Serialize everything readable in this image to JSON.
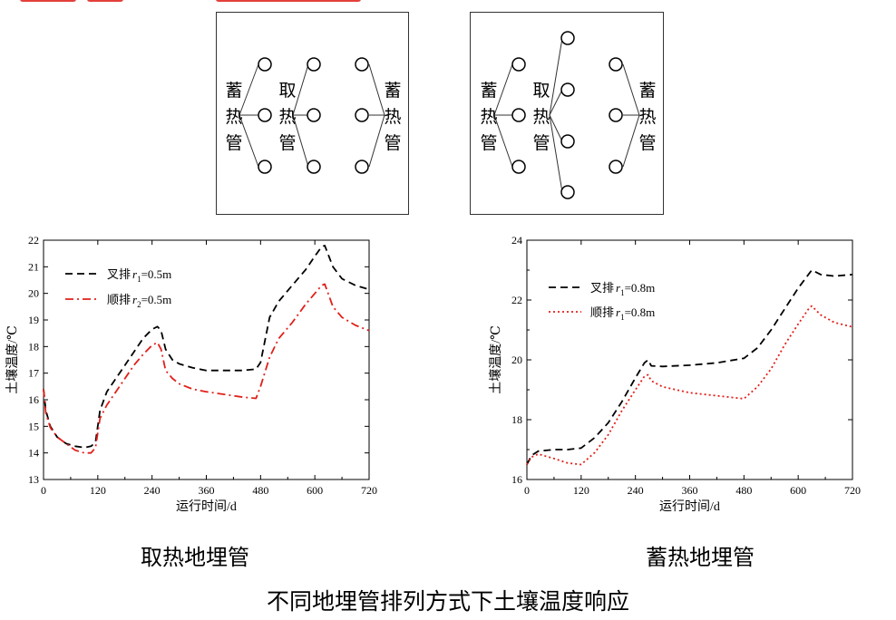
{
  "diagrams": {
    "left": {
      "labels": [
        "蓄热管",
        "取热管",
        "蓄热管"
      ]
    },
    "right": {
      "labels": [
        "蓄热管",
        "取热管",
        "蓄热管"
      ]
    }
  },
  "captions": {
    "left": "取热地埋管",
    "right": "蓄热地埋管",
    "main": "不同地埋管排列方式下土壤温度响应"
  },
  "colors": {
    "black": "#000000",
    "red": "#e0201a"
  },
  "chart_data": [
    {
      "type": "line",
      "title": "取热地埋管",
      "xlabel": "运行时间/d",
      "ylabel": "土壤温度/℃",
      "xlim": [
        0,
        720
      ],
      "ylim": [
        13,
        22
      ],
      "xticks": [
        0,
        120,
        240,
        360,
        480,
        600,
        720
      ],
      "yticks": [
        13,
        14,
        15,
        16,
        17,
        18,
        19,
        20,
        21,
        22
      ],
      "legend_position": "top-left",
      "series": [
        {
          "name": "叉排",
          "r_var": "r",
          "r_sub": "1",
          "r_val": "=0.5m",
          "color": "#000000",
          "dash": "dash",
          "x": [
            0,
            5,
            15,
            30,
            50,
            70,
            90,
            105,
            115,
            125,
            140,
            160,
            180,
            200,
            220,
            240,
            252,
            260,
            270,
            285,
            300,
            330,
            360,
            400,
            440,
            470,
            480,
            500,
            520,
            550,
            580,
            600,
            615,
            622,
            640,
            660,
            690,
            720
          ],
          "y": [
            16.4,
            15.6,
            15.0,
            14.6,
            14.35,
            14.25,
            14.2,
            14.25,
            14.4,
            15.6,
            16.3,
            16.8,
            17.3,
            17.8,
            18.3,
            18.65,
            18.75,
            18.6,
            17.9,
            17.5,
            17.35,
            17.2,
            17.1,
            17.1,
            17.1,
            17.15,
            17.4,
            19.1,
            19.7,
            20.3,
            20.9,
            21.4,
            21.75,
            21.8,
            21.0,
            20.55,
            20.3,
            20.15
          ]
        },
        {
          "name": "顺排",
          "r_var": "r",
          "r_sub": "2",
          "r_val": "=0.5m",
          "color": "#e0201a",
          "dash": "dashdot",
          "x": [
            0,
            5,
            15,
            30,
            50,
            70,
            90,
            105,
            115,
            125,
            140,
            160,
            180,
            200,
            220,
            240,
            252,
            260,
            270,
            285,
            300,
            330,
            360,
            400,
            440,
            470,
            480,
            500,
            520,
            550,
            580,
            600,
            615,
            622,
            640,
            660,
            690,
            720
          ],
          "y": [
            16.4,
            15.5,
            14.95,
            14.6,
            14.35,
            14.1,
            14.0,
            14.0,
            14.2,
            15.3,
            15.8,
            16.3,
            16.8,
            17.3,
            17.7,
            18.05,
            18.15,
            17.9,
            17.1,
            16.8,
            16.6,
            16.4,
            16.3,
            16.2,
            16.1,
            16.05,
            16.5,
            17.6,
            18.3,
            18.9,
            19.6,
            20.0,
            20.3,
            20.35,
            19.5,
            19.1,
            18.8,
            18.6
          ]
        }
      ]
    },
    {
      "type": "line",
      "title": "蓄热地埋管",
      "xlabel": "运行时间/d",
      "ylabel": "土壤温度/℃",
      "xlim": [
        0,
        720
      ],
      "ylim": [
        16,
        24
      ],
      "xticks": [
        0,
        120,
        240,
        360,
        480,
        600,
        720
      ],
      "yticks": [
        16,
        18,
        20,
        22,
        24
      ],
      "legend_position": "top-left",
      "series": [
        {
          "name": "叉排",
          "r_var": "r",
          "r_sub": "1",
          "r_val": "=0.8m",
          "color": "#000000",
          "dash": "dash",
          "x": [
            0,
            10,
            25,
            60,
            90,
            120,
            150,
            180,
            210,
            240,
            260,
            268,
            275,
            300,
            360,
            420,
            480,
            510,
            540,
            570,
            600,
            625,
            630,
            650,
            680,
            720
          ],
          "y": [
            16.5,
            16.8,
            16.95,
            17.0,
            17.0,
            17.05,
            17.4,
            17.9,
            18.6,
            19.4,
            19.9,
            20.0,
            19.8,
            19.78,
            19.82,
            19.9,
            20.05,
            20.4,
            21.0,
            21.7,
            22.4,
            22.9,
            23.0,
            22.85,
            22.8,
            22.85
          ]
        },
        {
          "name": "顺排",
          "r_var": "r",
          "r_sub": "1",
          "r_val": "=0.8m",
          "color": "#e0201a",
          "dash": "dot",
          "x": [
            0,
            10,
            25,
            60,
            90,
            120,
            150,
            180,
            210,
            240,
            260,
            268,
            275,
            300,
            360,
            420,
            480,
            510,
            540,
            570,
            600,
            625,
            630,
            650,
            680,
            720
          ],
          "y": [
            16.5,
            16.75,
            16.85,
            16.7,
            16.55,
            16.5,
            16.9,
            17.5,
            18.3,
            19.0,
            19.45,
            19.5,
            19.3,
            19.1,
            18.9,
            18.8,
            18.7,
            19.1,
            19.7,
            20.5,
            21.2,
            21.75,
            21.8,
            21.5,
            21.25,
            21.1
          ]
        }
      ]
    }
  ]
}
